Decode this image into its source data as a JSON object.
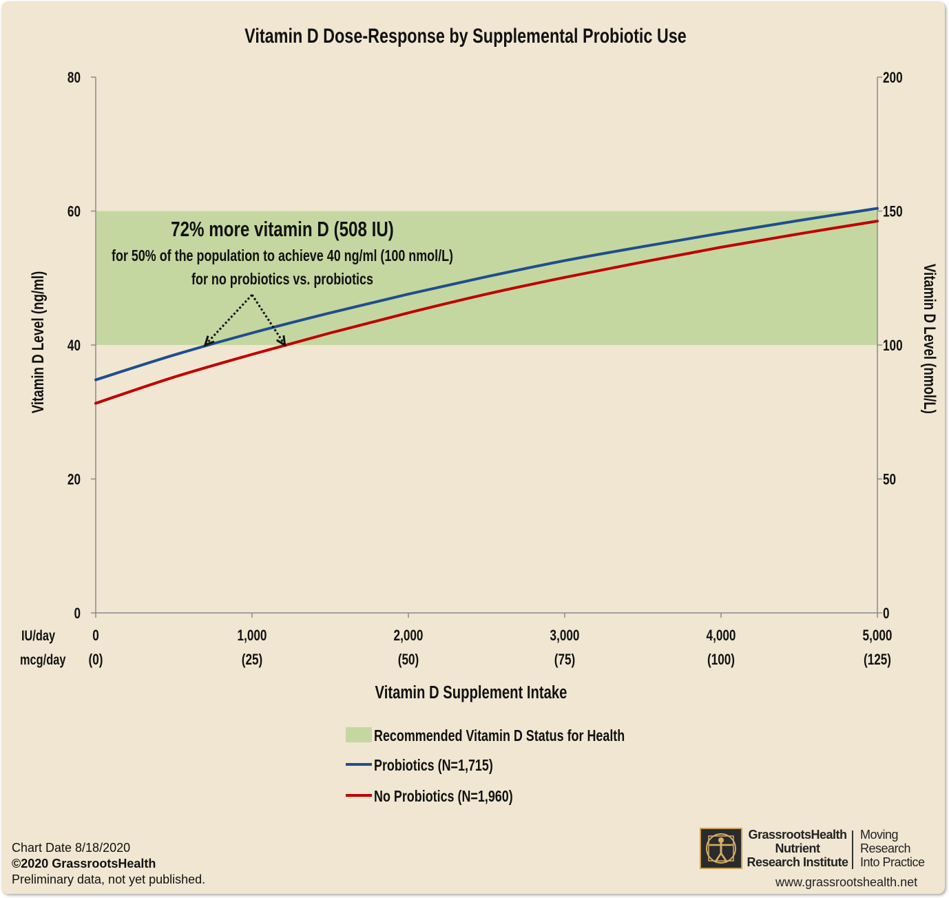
{
  "chart_data": {
    "type": "line",
    "title": "Vitamin D Dose-Response by Supplemental Probiotic Use",
    "xlabel": "Vitamin D Supplement Intake",
    "ylabel": "Vitamin D Level (ng/ml)",
    "y2label": "Vitamin D Level (nmol/L)",
    "xlim": [
      0,
      5000
    ],
    "ylim": [
      0,
      80
    ],
    "y2lim": [
      0,
      200
    ],
    "x_row_labels": {
      "iu": "IU/day",
      "mcg": "mcg/day"
    },
    "x_ticks": [
      {
        "value": 0,
        "iu": "0",
        "mcg": "(0)"
      },
      {
        "value": 1000,
        "iu": "1,000",
        "mcg": "(25)"
      },
      {
        "value": 2000,
        "iu": "2,000",
        "mcg": "(50)"
      },
      {
        "value": 3000,
        "iu": "3,000",
        "mcg": "(75)"
      },
      {
        "value": 4000,
        "iu": "4,000",
        "mcg": "(100)"
      },
      {
        "value": 5000,
        "iu": "5,000",
        "mcg": "(125)"
      }
    ],
    "y_ticks": [
      "0",
      "20",
      "40",
      "60",
      "80"
    ],
    "y2_ticks": [
      "0",
      "50",
      "100",
      "150",
      "200"
    ],
    "band": {
      "name": "Recommended Vitamin D Status for Health",
      "from": 40,
      "to": 60,
      "color": "#c5d7a0"
    },
    "series": [
      {
        "name": "Probiotics (N=1,715)",
        "color": "#1f4e8c",
        "x": [
          0,
          500,
          1000,
          1500,
          2000,
          2500,
          3000,
          3500,
          4000,
          4500,
          5000
        ],
        "y": [
          34.8,
          38.5,
          41.8,
          44.8,
          47.6,
          50.2,
          52.6,
          54.7,
          56.7,
          58.6,
          60.4
        ]
      },
      {
        "name": "No Probiotics (N=1,960)",
        "color": "#c00000",
        "x": [
          0,
          500,
          1000,
          1500,
          2000,
          2500,
          3000,
          3500,
          4000,
          4500,
          5000
        ],
        "y": [
          31.3,
          35.2,
          38.6,
          41.8,
          44.8,
          47.6,
          50.1,
          52.4,
          54.6,
          56.6,
          58.5
        ]
      }
    ],
    "annotation": {
      "headline": "72% more vitamin D (508 IU)",
      "line1": "for 50% of the population to achieve 40 ng/ml (100 nmol/L)",
      "line2": "for no probiotics vs. probiotics",
      "arrow_origin": {
        "x": 1000,
        "y": 47.5
      },
      "arrow_targets": [
        {
          "x": 700,
          "y": 40
        },
        {
          "x": 1210,
          "y": 40
        }
      ]
    },
    "grid": false,
    "legend_position": "bottom-center"
  },
  "footer": {
    "chart_date": "Chart Date 8/18/2020",
    "copyright": "©2020 GrassrootsHealth",
    "note": "Preliminary data, not yet published."
  },
  "logo": {
    "name_line1": "GrassrootsHealth",
    "name_line2": "Nutrient",
    "name_line3": "Research Institute",
    "tag_line1": "Moving",
    "tag_line2": "Research",
    "tag_line3": "Into Practice",
    "url": "www.grassrootshealth.net"
  }
}
